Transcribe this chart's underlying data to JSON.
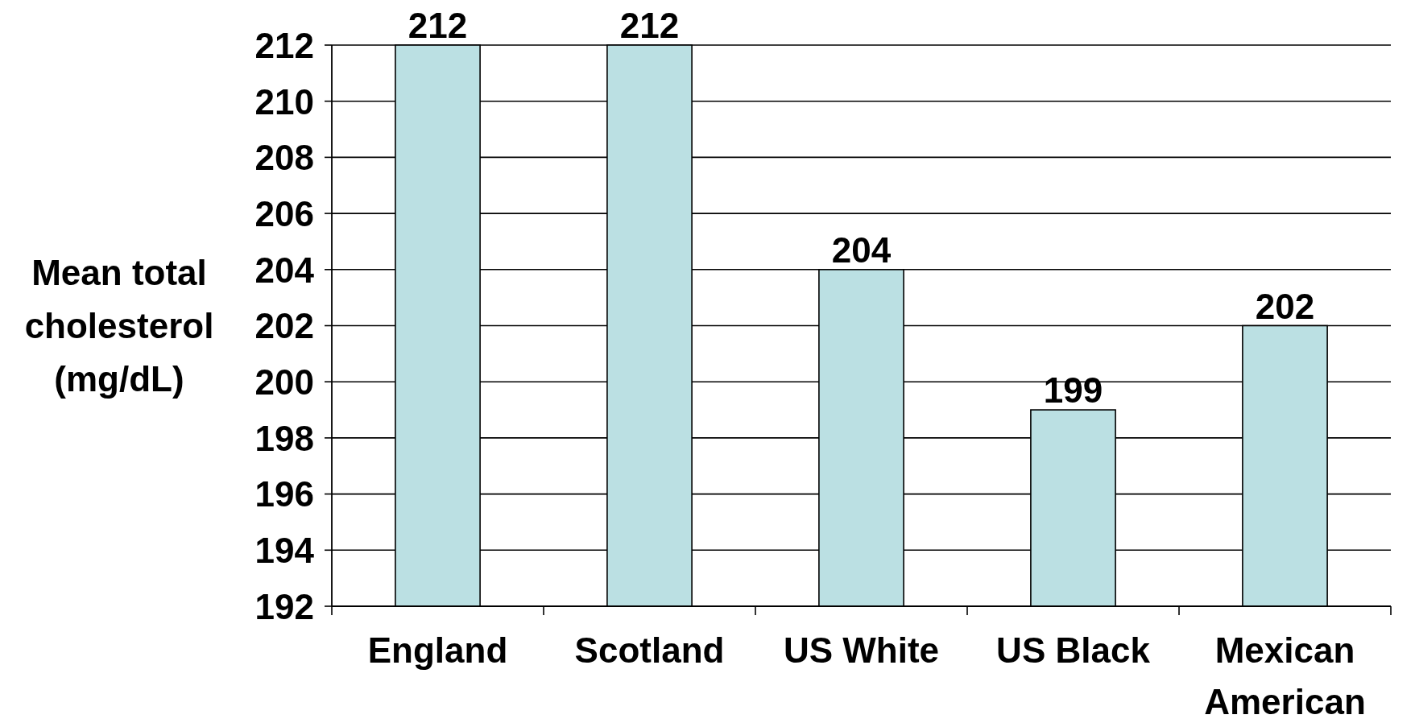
{
  "chart_data": {
    "type": "bar",
    "ylabel": "Mean total cholesterol (mg/dL)",
    "categories": [
      "England",
      "Scotland",
      "US White",
      "US Black",
      "Mexican American"
    ],
    "values": [
      212,
      212,
      204,
      199,
      202
    ],
    "color": "#bbe0e3",
    "ylim": [
      192,
      212
    ],
    "yticks": [
      192,
      194,
      196,
      198,
      200,
      202,
      204,
      206,
      208,
      210,
      212
    ],
    "grid": "y",
    "data_labels": true
  }
}
